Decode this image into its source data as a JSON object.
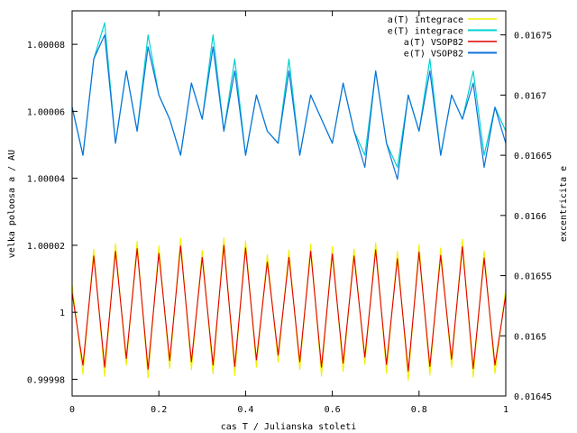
{
  "chart_data": {
    "type": "line",
    "title": "",
    "xlabel": "cas T / Julianska stoleti",
    "ylabel_left": "velka poloosa a / AU",
    "ylabel_right": "excentricita e",
    "xlim": [
      0,
      1
    ],
    "ylim_left": [
      0.999975,
      1.00009
    ],
    "ylim_right": [
      0.01645,
      0.01677
    ],
    "x_ticks": [
      "0",
      "0.2",
      "0.4",
      "0.6",
      "0.8",
      "1"
    ],
    "y_ticks_left": [
      "0.99998",
      "1",
      "1.00002",
      "1.00004",
      "1.00006",
      "1.00008"
    ],
    "y_ticks_right": [
      "0.01645",
      "0.0165",
      "0.01655",
      "0.0166",
      "0.01665",
      "0.0167",
      "0.01675"
    ],
    "grid": false,
    "legend_position": "top-right",
    "series": [
      {
        "name": "a(T) integrace",
        "axis": "left",
        "color": "#f0f000",
        "x": [
          0,
          0.025,
          0.05,
          0.075,
          0.1,
          0.125,
          0.15,
          0.175,
          0.2,
          0.225,
          0.25,
          0.275,
          0.3,
          0.325,
          0.35,
          0.375,
          0.4,
          0.425,
          0.45,
          0.475,
          0.5,
          0.525,
          0.55,
          0.575,
          0.6,
          0.625,
          0.65,
          0.675,
          0.7,
          0.725,
          0.75,
          0.775,
          0.8,
          0.825,
          0.85,
          0.875,
          0.9,
          0.925,
          0.95,
          0.975,
          1
        ],
        "values": [
          1.0000083,
          0.9999815,
          1.0000188,
          0.9999808,
          1.0000205,
          0.9999842,
          1.0000212,
          0.9999804,
          1.0000198,
          0.9999832,
          1.0000221,
          0.9999828,
          1.0000185,
          0.9999816,
          1.0000222,
          0.9999811,
          1.0000214,
          0.9999836,
          1.0000172,
          0.9999851,
          1.0000186,
          0.9999828,
          1.0000204,
          0.9999809,
          1.0000196,
          0.9999823,
          1.0000189,
          0.9999845,
          1.0000208,
          0.9999818,
          1.0000182,
          0.9999797,
          1.0000202,
          0.9999812,
          1.0000192,
          0.9999836,
          1.0000218,
          0.9999806,
          1.0000183,
          0.9999817,
          1.0000071
        ]
      },
      {
        "name": "e(T) integrace",
        "axis": "right",
        "color": "#00d2d2",
        "x": [
          0,
          0.025,
          0.05,
          0.075,
          0.1,
          0.125,
          0.15,
          0.175,
          0.2,
          0.225,
          0.25,
          0.275,
          0.3,
          0.325,
          0.35,
          0.375,
          0.4,
          0.425,
          0.45,
          0.475,
          0.5,
          0.525,
          0.55,
          0.575,
          0.6,
          0.625,
          0.65,
          0.675,
          0.7,
          0.725,
          0.75,
          0.775,
          0.8,
          0.825,
          0.85,
          0.875,
          0.9,
          0.925,
          0.95,
          0.975,
          1
        ],
        "values": [
          0.01669,
          0.01665,
          0.01673,
          0.01676,
          0.01666,
          0.01672,
          0.01667,
          0.01675,
          0.0167,
          0.01668,
          0.01665,
          0.01671,
          0.01668,
          0.01675,
          0.01667,
          0.01673,
          0.01665,
          0.0167,
          0.01667,
          0.01666,
          0.01673,
          0.01665,
          0.0167,
          0.01668,
          0.01666,
          0.01671,
          0.01667,
          0.01665,
          0.01672,
          0.01666,
          0.01664,
          0.0167,
          0.01667,
          0.01673,
          0.01665,
          0.0167,
          0.01668,
          0.01672,
          0.01665,
          0.01669,
          0.01667
        ]
      },
      {
        "name": "a(T) VSOP82",
        "axis": "left",
        "color": "#e00000",
        "x": [
          0,
          0.025,
          0.05,
          0.075,
          0.1,
          0.125,
          0.15,
          0.175,
          0.2,
          0.225,
          0.25,
          0.275,
          0.3,
          0.325,
          0.35,
          0.375,
          0.4,
          0.425,
          0.45,
          0.475,
          0.5,
          0.525,
          0.55,
          0.575,
          0.6,
          0.625,
          0.65,
          0.675,
          0.7,
          0.725,
          0.75,
          0.775,
          0.8,
          0.825,
          0.85,
          0.875,
          0.9,
          0.925,
          0.95,
          0.975,
          1
        ],
        "values": [
          1.0000058,
          0.9999842,
          1.0000168,
          0.9999836,
          1.0000182,
          0.9999862,
          1.000019,
          0.999983,
          1.0000176,
          0.9999856,
          1.0000198,
          0.9999852,
          1.0000164,
          0.9999842,
          1.00002,
          0.9999838,
          1.0000192,
          0.9999858,
          1.000015,
          0.9999872,
          1.0000164,
          0.9999852,
          1.0000182,
          0.9999836,
          1.0000174,
          0.9999848,
          1.0000168,
          0.9999866,
          1.0000186,
          0.9999844,
          1.000016,
          0.9999824,
          1.000018,
          0.9999838,
          1.000017,
          0.999986,
          1.0000196,
          0.9999832,
          1.0000162,
          0.9999842,
          1.0000052
        ]
      },
      {
        "name": "e(T) VSOP82",
        "axis": "right",
        "color": "#1070d8",
        "x": [
          0,
          0.025,
          0.05,
          0.075,
          0.1,
          0.125,
          0.15,
          0.175,
          0.2,
          0.225,
          0.25,
          0.275,
          0.3,
          0.325,
          0.35,
          0.375,
          0.4,
          0.425,
          0.45,
          0.475,
          0.5,
          0.525,
          0.55,
          0.575,
          0.6,
          0.625,
          0.65,
          0.675,
          0.7,
          0.725,
          0.75,
          0.775,
          0.8,
          0.825,
          0.85,
          0.875,
          0.9,
          0.925,
          0.95,
          0.975,
          1
        ],
        "values": [
          0.01669,
          0.01665,
          0.01673,
          0.01675,
          0.01666,
          0.01672,
          0.01667,
          0.01674,
          0.0167,
          0.01668,
          0.01665,
          0.01671,
          0.01668,
          0.01674,
          0.01667,
          0.01672,
          0.01665,
          0.0167,
          0.01667,
          0.01666,
          0.01672,
          0.01665,
          0.0167,
          0.01668,
          0.01666,
          0.01671,
          0.01667,
          0.01664,
          0.01672,
          0.01666,
          0.01663,
          0.0167,
          0.01667,
          0.01672,
          0.01665,
          0.0167,
          0.01668,
          0.01671,
          0.01664,
          0.01669,
          0.01666
        ]
      }
    ]
  }
}
